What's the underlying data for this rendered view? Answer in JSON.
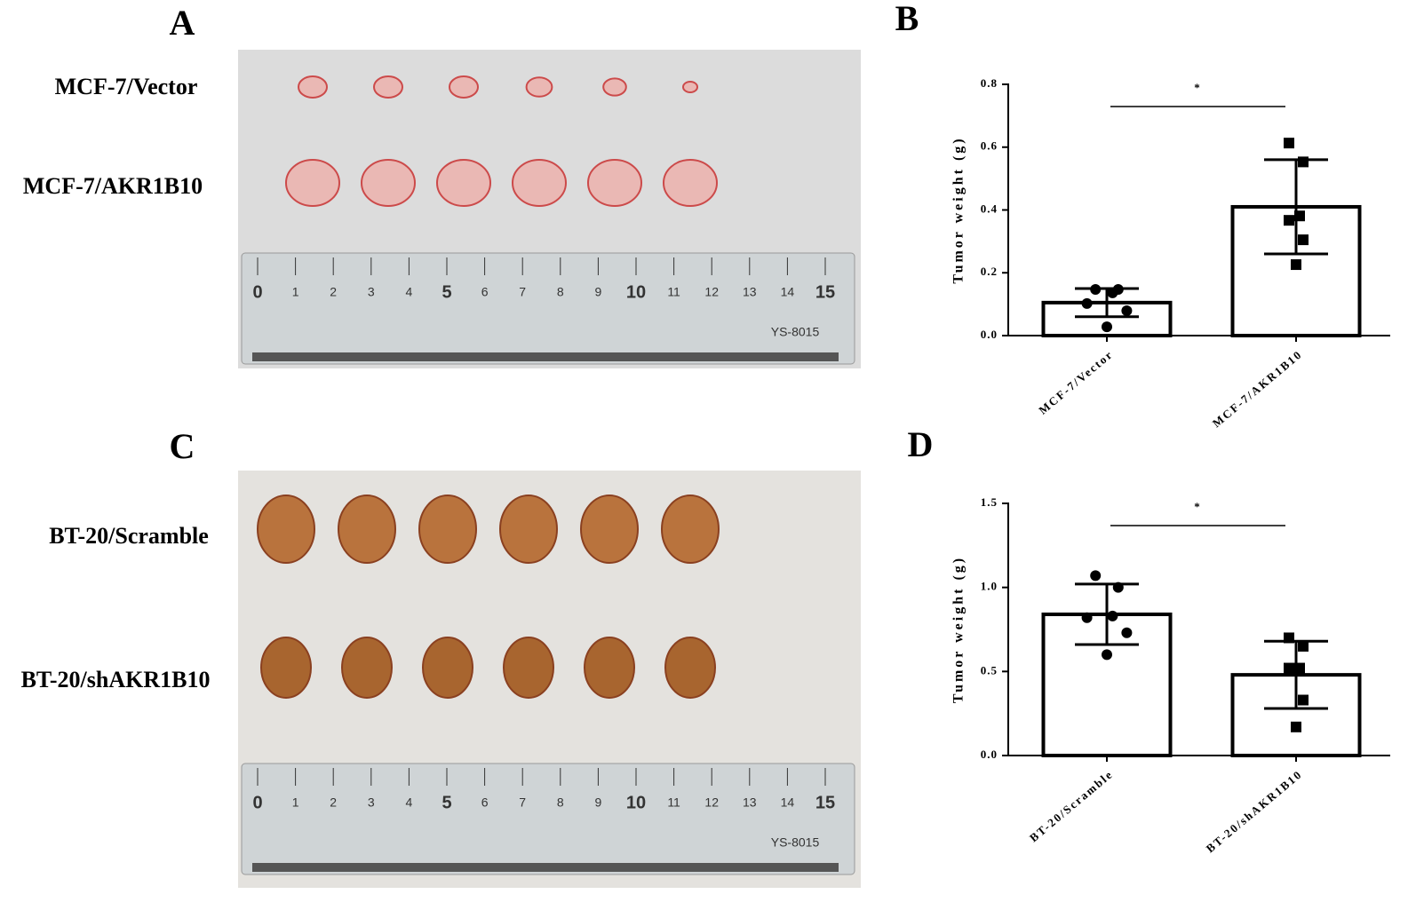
{
  "panels": [
    {
      "letter": "A",
      "rows": [
        "MCF-7/Vector",
        "MCF-7/AKR1B10"
      ]
    },
    {
      "letter": "C",
      "rows": [
        "BT-20/Scramble",
        "BT-20/shAKR1B10"
      ]
    }
  ],
  "ruler": {
    "labels": [
      "0",
      "1",
      "2",
      "3",
      "4",
      "5",
      "6",
      "7",
      "8",
      "9",
      "10",
      "11",
      "12",
      "13",
      "14",
      "15"
    ],
    "model": "YS-8015"
  },
  "chart_data": [
    {
      "type": "bar",
      "panel": "B",
      "y_label": "Tumor weight (g)",
      "categories": [
        "MCF-7/Vector",
        "MCF-7/AKR1B10"
      ],
      "values": [
        0.105,
        0.41
      ],
      "errors": [
        0.045,
        0.15
      ],
      "points": [
        [
          0.147,
          0.147,
          0.136,
          0.102,
          0.079,
          0.028
        ],
        [
          0.613,
          0.553,
          0.381,
          0.367,
          0.305,
          0.226
        ]
      ],
      "markers": [
        "circle",
        "square"
      ],
      "ylim": [
        0,
        0.8
      ],
      "yticks": [
        {
          "value": 0,
          "label": "0.0"
        },
        0.2,
        0.4,
        0.6,
        0.8
      ],
      "annotation": "*",
      "color": "#000000"
    },
    {
      "type": "bar",
      "panel": "D",
      "y_label": "Tumor weight (g)",
      "categories": [
        "BT-20/Scramble",
        "BT-20/shAKR1B10"
      ],
      "values": [
        0.84,
        0.48
      ],
      "errors": [
        0.18,
        0.2
      ],
      "points": [
        [
          1.07,
          1.0,
          0.83,
          0.82,
          0.73,
          0.6
        ],
        [
          0.7,
          0.65,
          0.52,
          0.52,
          0.33,
          0.17
        ]
      ],
      "markers": [
        "circle",
        "square"
      ],
      "ylim": [
        0,
        1.5
      ],
      "yticks": [
        {
          "value": 0,
          "label": "0.0"
        },
        0.5,
        {
          "value": 1,
          "label": "1.0"
        },
        1.5
      ],
      "annotation": "*",
      "color": "#000000"
    }
  ]
}
